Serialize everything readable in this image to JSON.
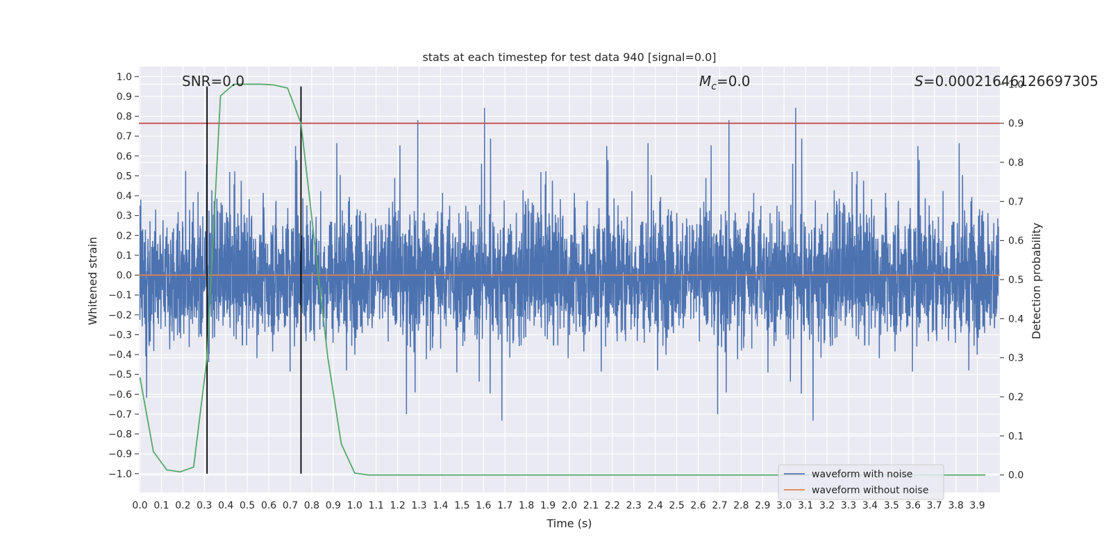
{
  "chart_data": {
    "type": "line",
    "title": "stats at each timestep for test data 940 [signal=0.0]",
    "xlabel": "Time (s)",
    "ylabel": "Whitened strain",
    "y2label": "Detection probability",
    "xlim": [
      -0.005,
      4.005
    ],
    "ylim": [
      -1.095,
      1.05
    ],
    "y2lim": [
      -0.045,
      1.045
    ],
    "x_ticks": [
      "0.0",
      "0.1",
      "0.2",
      "0.3",
      "0.4",
      "0.5",
      "0.6",
      "0.7",
      "0.8",
      "0.9",
      "1.0",
      "1.1",
      "1.2",
      "1.3",
      "1.4",
      "1.5",
      "1.6",
      "1.7",
      "1.8",
      "1.9",
      "2.0",
      "2.1",
      "2.2",
      "2.3",
      "2.4",
      "2.5",
      "2.6",
      "2.7",
      "2.8",
      "2.9",
      "3.0",
      "3.1",
      "3.2",
      "3.3",
      "3.4",
      "3.5",
      "3.6",
      "3.7",
      "3.8",
      "3.9"
    ],
    "y_ticks": [
      "1.0",
      "0.9",
      "0.8",
      "0.7",
      "0.6",
      "0.5",
      "0.4",
      "0.3",
      "0.2",
      "0.1",
      "0.0",
      "−0.1",
      "−0.2",
      "−0.3",
      "−0.4",
      "−0.5",
      "−0.6",
      "−0.7",
      "−0.8",
      "−0.9",
      "−1.0"
    ],
    "y2_ticks": [
      "1.0",
      "0.9",
      "0.8",
      "0.7",
      "0.6",
      "0.5",
      "0.4",
      "0.3",
      "0.2",
      "0.1",
      "0.0"
    ],
    "annotations": {
      "snr": "SNR=0.0",
      "mc_symbol": "M",
      "mc_sub": "c",
      "mc_value": "=0.0",
      "s_symbol": "S",
      "s_value": "=0.00021646126697305"
    },
    "series": [
      {
        "name": "waveform with noise",
        "color": "#4c72b0",
        "note": "dense noise, approx. within [-0.97, 0.95]"
      },
      {
        "name": "waveform without noise",
        "color": "#dd8452",
        "values": "constant 0.0"
      }
    ],
    "detection_probability": {
      "color": "#55a868",
      "x": [
        0.0,
        0.0625,
        0.125,
        0.1875,
        0.25,
        0.3125,
        0.375,
        0.4375,
        0.5,
        0.5625,
        0.625,
        0.6875,
        0.75,
        0.8125,
        0.875,
        0.9375,
        1.0,
        1.0625,
        3.9375
      ],
      "values": [
        0.25,
        0.06,
        0.013,
        0.008,
        0.02,
        0.3,
        0.97,
        1.0,
        1.0,
        1.0,
        0.998,
        0.99,
        0.9,
        0.6,
        0.3,
        0.08,
        0.005,
        0.0,
        0.0
      ]
    },
    "threshold": {
      "value": 0.9,
      "color": "#c44e52"
    },
    "vlines": {
      "x": [
        0.3125,
        0.75
      ],
      "color": "#000000"
    },
    "legend": {
      "location": "lower right",
      "entries": [
        "waveform with noise",
        "waveform without noise"
      ]
    }
  }
}
